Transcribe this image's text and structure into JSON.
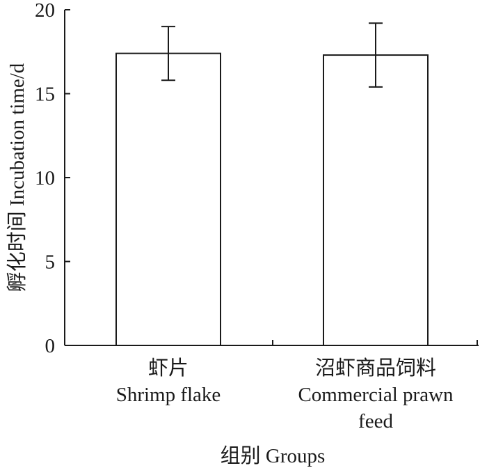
{
  "chart_data": {
    "type": "bar",
    "categories": [
      {
        "line1": "虾片",
        "line2": "Shrimp flake",
        "line3": ""
      },
      {
        "line1": "沼虾商品饲料",
        "line2": "Commercial prawn",
        "line3": "feed"
      }
    ],
    "values": [
      17.4,
      17.3
    ],
    "errors": [
      1.6,
      1.9
    ],
    "ylim": [
      0,
      20
    ],
    "yticks": [
      0,
      5,
      10,
      15,
      20
    ],
    "xlabel": "组别 Groups",
    "ylabel": "孵化时间 Incubation time/d",
    "grid": false,
    "colors": {
      "bar_fill": "#ffffff",
      "stroke": "#1a1a1a"
    }
  }
}
